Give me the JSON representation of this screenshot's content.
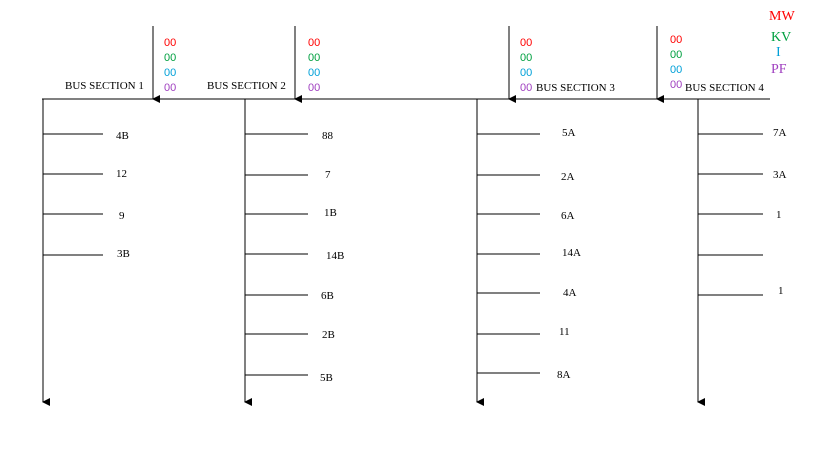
{
  "legend": [
    {
      "text": "MW",
      "color": "#ff0000"
    },
    {
      "text": "KV",
      "color": "#00a040"
    },
    {
      "text": "I",
      "color": "#00a0d8"
    },
    {
      "text": "PF",
      "color": "#a040c0"
    }
  ],
  "sections": [
    {
      "label": "BUS SECTION 1",
      "mw": "00",
      "kv": "00",
      "i": "00",
      "pf": "00",
      "feeders": [
        "4B",
        "12",
        "9",
        "3B"
      ]
    },
    {
      "label": "BUS SECTION 2",
      "mw": "00",
      "kv": "00",
      "i": "00",
      "pf": "00",
      "feeders": [
        "88",
        "7",
        "1B",
        "14B",
        "6B",
        "2B",
        "5B"
      ]
    },
    {
      "label": "BUS SECTION 3",
      "mw": "00",
      "kv": "00",
      "i": "00",
      "pf": "00",
      "feeders": [
        "5A",
        "2A",
        "6A",
        "14A",
        "4A",
        "11",
        "8A"
      ]
    },
    {
      "label": "BUS SECTION 4",
      "mw": "00",
      "kv": "00",
      "i": "00",
      "pf": "00",
      "feeders": [
        "7A",
        "3A",
        "1",
        "",
        "1"
      ]
    }
  ]
}
